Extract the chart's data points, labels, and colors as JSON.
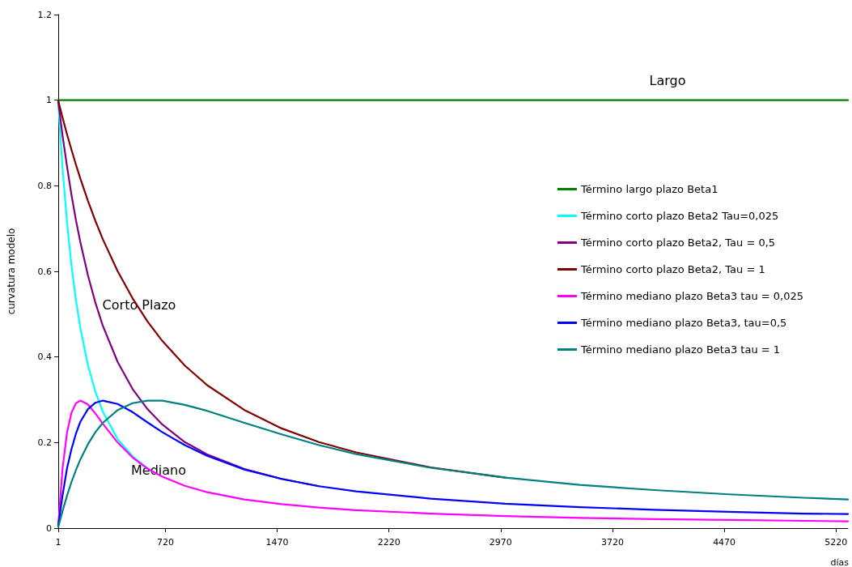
{
  "chart_data": {
    "type": "line",
    "xlabel": "días",
    "ylabel": "curvatura modelo",
    "x": [
      1,
      30,
      60,
      90,
      120,
      150,
      200,
      250,
      300,
      400,
      500,
      600,
      700,
      850,
      1000,
      1250,
      1500,
      1750,
      2000,
      2500,
      3000,
      3500,
      4000,
      4500,
      5000,
      5300
    ],
    "series": [
      {
        "name": "Término largo plazo Beta1",
        "color": "#008000",
        "x": [
          1,
          5300
        ],
        "values": [
          1,
          1
        ]
      },
      {
        "name": "Término corto plazo Beta2 Tau=0,025",
        "color": "#00ffff",
        "values": [
          0.994,
          0.84,
          0.714,
          0.613,
          0.532,
          0.466,
          0.381,
          0.319,
          0.272,
          0.208,
          0.168,
          0.14,
          null,
          null,
          null,
          null,
          null,
          null,
          null,
          null,
          null,
          null,
          null,
          null,
          null,
          null
        ]
      },
      {
        "name": "Término corto plazo Beta2, Tau = 0,5",
        "color": "#800080",
        "values": [
          0.997,
          0.917,
          0.845,
          0.778,
          0.719,
          0.667,
          0.591,
          0.527,
          0.473,
          0.388,
          0.325,
          0.278,
          0.242,
          0.201,
          0.172,
          0.138,
          0.115,
          0.098,
          null,
          null,
          null,
          null,
          null,
          null,
          null,
          null
        ]
      },
      {
        "name": "Término corto plazo Beta2, Tau = 1",
        "color": "#800000",
        "values": [
          0.999,
          0.959,
          0.92,
          0.884,
          0.849,
          0.816,
          0.765,
          0.718,
          0.675,
          0.6,
          0.537,
          0.483,
          0.437,
          0.38,
          0.334,
          0.276,
          0.233,
          0.201,
          0.177,
          0.142,
          0.118,
          null,
          null,
          null,
          null,
          null
        ]
      },
      {
        "name": "Término mediano plazo Beta3 tau = 0,025",
        "color": "#ff00ff",
        "values": [
          0.006,
          0.14,
          0.224,
          0.27,
          0.292,
          0.298,
          0.289,
          0.268,
          0.244,
          0.2,
          0.165,
          0.139,
          0.12,
          0.099,
          0.084,
          0.067,
          0.056,
          0.048,
          0.042,
          0.034,
          0.028,
          0.024,
          0.021,
          0.019,
          0.017,
          0.016
        ]
      },
      {
        "name": "Término mediano plazo Beta3, tau=0,5",
        "color": "#0000ff",
        "values": [
          0.006,
          0.077,
          0.14,
          0.185,
          0.221,
          0.249,
          0.278,
          0.293,
          0.298,
          0.29,
          0.271,
          0.247,
          0.224,
          0.194,
          0.169,
          0.137,
          0.115,
          0.098,
          0.086,
          0.069,
          0.057,
          0.049,
          0.043,
          0.038,
          0.034,
          0.033
        ]
      },
      {
        "name": "Término mediano plazo Beta3 tau = 1",
        "color": "#008080",
        "values": [
          0.003,
          0.04,
          0.076,
          0.108,
          0.136,
          0.161,
          0.196,
          0.224,
          0.246,
          0.276,
          0.292,
          0.298,
          0.298,
          0.288,
          0.274,
          0.246,
          0.219,
          0.194,
          0.173,
          0.141,
          0.118,
          0.101,
          0.089,
          0.079,
          0.071,
          0.067
        ]
      }
    ],
    "xlim": [
      1,
      5300
    ],
    "xticks": [
      1,
      720,
      1470,
      2220,
      2970,
      3720,
      4470,
      5220
    ],
    "ylim": [
      0,
      1.2
    ],
    "yticks": [
      0,
      0.2,
      0.4,
      0.6,
      0.8,
      1,
      1.2
    ],
    "annotations": [
      "Largo",
      "Corto Plazo",
      "Mediano"
    ],
    "legend": "right",
    "grid": false,
    "marker": "none",
    "line_style": "solid"
  }
}
